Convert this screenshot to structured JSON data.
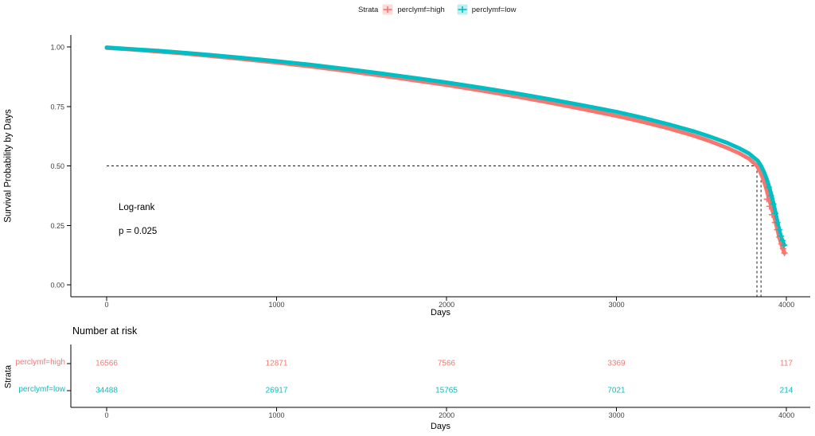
{
  "chart_data": [
    {
      "type": "line",
      "subtype": "kaplan-meier-survival",
      "title": "",
      "legend_title": "Strata",
      "legend_position": "top-center",
      "xlabel": "Days",
      "ylabel": "Survival Probability by Days",
      "xlim": [
        0,
        4220
      ],
      "ylim": [
        0,
        1.0
      ],
      "grid": false,
      "xticks": [
        0,
        1000,
        2000,
        3000,
        4000
      ],
      "xtick_labels": [
        "0",
        "1000",
        "2000",
        "3000",
        "4000"
      ],
      "yticks": [
        0,
        0.25,
        0.5,
        0.75,
        1.0
      ],
      "ytick_labels": [
        "0.00",
        "0.25",
        "0.50",
        "0.75",
        "1.00"
      ],
      "annotation": {
        "test": "Log-rank",
        "p": "p = 0.025"
      },
      "median_guides": {
        "y": 0.5,
        "x": [
          3826,
          3850
        ],
        "style": "dashed"
      },
      "series": [
        {
          "name": "perclymf=high",
          "color": "#F8766D",
          "tint": "#FBDBD8",
          "median_days": 3826,
          "points": [
            [
              0,
              0.996
            ],
            [
              150,
              0.989
            ],
            [
              300,
              0.981
            ],
            [
              450,
              0.973
            ],
            [
              600,
              0.963
            ],
            [
              800,
              0.949
            ],
            [
              1000,
              0.934
            ],
            [
              1200,
              0.918
            ],
            [
              1400,
              0.9
            ],
            [
              1600,
              0.881
            ],
            [
              1800,
              0.861
            ],
            [
              2000,
              0.84
            ],
            [
              2200,
              0.817
            ],
            [
              2400,
              0.793
            ],
            [
              2600,
              0.767
            ],
            [
              2800,
              0.739
            ],
            [
              3000,
              0.71
            ],
            [
              3150,
              0.686
            ],
            [
              3300,
              0.659
            ],
            [
              3450,
              0.628
            ],
            [
              3550,
              0.604
            ],
            [
              3650,
              0.576
            ],
            [
              3720,
              0.554
            ],
            [
              3780,
              0.53
            ],
            [
              3826,
              0.5
            ],
            [
              3845,
              0.476
            ],
            [
              3862,
              0.446
            ],
            [
              3878,
              0.412
            ],
            [
              3892,
              0.376
            ],
            [
              3906,
              0.34
            ],
            [
              3920,
              0.305
            ],
            [
              3934,
              0.268
            ],
            [
              3946,
              0.233
            ],
            [
              3958,
              0.198
            ],
            [
              3968,
              0.174
            ],
            [
              3978,
              0.152
            ],
            [
              3988,
              0.134
            ]
          ],
          "censor_marks": [
            [
              3885,
              0.36
            ],
            [
              3900,
              0.33
            ],
            [
              3915,
              0.295
            ],
            [
              3932,
              0.262
            ],
            [
              3945,
              0.232
            ],
            [
              3958,
              0.2
            ],
            [
              3970,
              0.172
            ],
            [
              3980,
              0.152
            ],
            [
              3988,
              0.134
            ]
          ]
        },
        {
          "name": "perclymf=low",
          "color": "#00BFC4",
          "tint": "#BEEFF1",
          "median_days": 3850,
          "points": [
            [
              0,
              0.998
            ],
            [
              150,
              0.991
            ],
            [
              300,
              0.984
            ],
            [
              450,
              0.976
            ],
            [
              600,
              0.967
            ],
            [
              800,
              0.954
            ],
            [
              1000,
              0.94
            ],
            [
              1200,
              0.925
            ],
            [
              1400,
              0.908
            ],
            [
              1600,
              0.89
            ],
            [
              1800,
              0.871
            ],
            [
              2000,
              0.851
            ],
            [
              2200,
              0.829
            ],
            [
              2400,
              0.806
            ],
            [
              2600,
              0.781
            ],
            [
              2800,
              0.755
            ],
            [
              3000,
              0.727
            ],
            [
              3150,
              0.703
            ],
            [
              3300,
              0.676
            ],
            [
              3450,
              0.646
            ],
            [
              3550,
              0.623
            ],
            [
              3650,
              0.597
            ],
            [
              3720,
              0.575
            ],
            [
              3780,
              0.552
            ],
            [
              3830,
              0.522
            ],
            [
              3850,
              0.5
            ],
            [
              3868,
              0.474
            ],
            [
              3884,
              0.444
            ],
            [
              3898,
              0.412
            ],
            [
              3912,
              0.376
            ],
            [
              3924,
              0.34
            ],
            [
              3936,
              0.302
            ],
            [
              3946,
              0.266
            ],
            [
              3956,
              0.234
            ],
            [
              3966,
              0.206
            ],
            [
              3976,
              0.186
            ],
            [
              3986,
              0.167
            ]
          ],
          "censor_marks": [
            [
              3895,
              0.41
            ],
            [
              3908,
              0.375
            ],
            [
              3922,
              0.34
            ],
            [
              3934,
              0.3
            ],
            [
              3946,
              0.262
            ],
            [
              3956,
              0.232
            ],
            [
              3966,
              0.205
            ],
            [
              3976,
              0.186
            ],
            [
              3986,
              0.167
            ]
          ]
        }
      ]
    },
    {
      "type": "table",
      "title": "Number at risk",
      "ylabel": "Strata",
      "xlabel": "Days",
      "xticks": [
        0,
        1000,
        2000,
        3000,
        4000
      ],
      "xtick_labels": [
        "0",
        "1000",
        "2000",
        "3000",
        "4000"
      ],
      "rows": [
        {
          "label": "perclymf=high",
          "color": "#F8766D",
          "values": [
            "16566",
            "12871",
            "7566",
            "3369",
            "117"
          ]
        },
        {
          "label": "perclymf=low",
          "color": "#00BFC4",
          "values": [
            "34488",
            "26917",
            "15765",
            "7021",
            "214"
          ]
        }
      ]
    }
  ]
}
